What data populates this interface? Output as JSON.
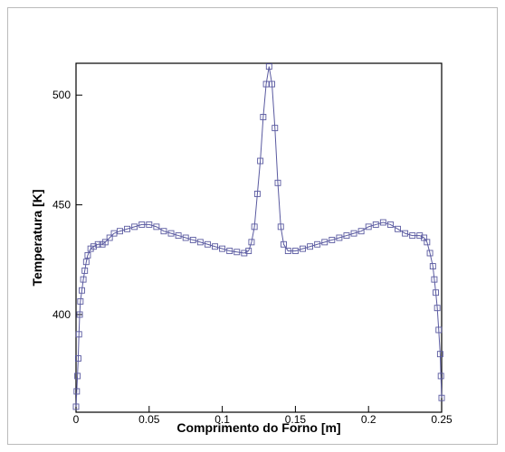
{
  "chart_data": {
    "type": "line",
    "x_label": "Comprimento do Forno [m]",
    "y_label": "Temperatura [K]",
    "x": [
      0,
      0.0005,
      0.001,
      0.0015,
      0.002,
      0.0025,
      0.003,
      0.004,
      0.005,
      0.006,
      0.007,
      0.008,
      0.01,
      0.012,
      0.015,
      0.018,
      0.02,
      0.023,
      0.026,
      0.03,
      0.035,
      0.04,
      0.045,
      0.05,
      0.055,
      0.06,
      0.065,
      0.07,
      0.075,
      0.08,
      0.085,
      0.09,
      0.095,
      0.1,
      0.105,
      0.11,
      0.115,
      0.118,
      0.12,
      0.122,
      0.124,
      0.126,
      0.128,
      0.13,
      0.132,
      0.134,
      0.136,
      0.138,
      0.14,
      0.142,
      0.145,
      0.15,
      0.155,
      0.16,
      0.165,
      0.17,
      0.175,
      0.18,
      0.185,
      0.19,
      0.195,
      0.2,
      0.205,
      0.21,
      0.215,
      0.22,
      0.225,
      0.23,
      0.235,
      0.238,
      0.24,
      0.242,
      0.244,
      0.245,
      0.246,
      0.247,
      0.248,
      0.249,
      0.2495,
      0.25
    ],
    "values": [
      358,
      365,
      372,
      380,
      391,
      400,
      406,
      411,
      416,
      420,
      424,
      427,
      430,
      431,
      432,
      432,
      433,
      435,
      437,
      438,
      439,
      440,
      441,
      441,
      440,
      438,
      437,
      436,
      435,
      434,
      433,
      432,
      431,
      430,
      429,
      428.5,
      428,
      429,
      433,
      440,
      455,
      470,
      490,
      505,
      513,
      505,
      485,
      460,
      440,
      432,
      429,
      429,
      430,
      431,
      432,
      433,
      434,
      435,
      436,
      437,
      438,
      440,
      441,
      442,
      441,
      439,
      437,
      436,
      436,
      435,
      433,
      428,
      422,
      416,
      410,
      403,
      393,
      382,
      372,
      362
    ],
    "color": "#5a5aa0",
    "xlim": [
      0,
      0.25
    ],
    "xticks": [
      0,
      0.05,
      0.1,
      0.15,
      0.2,
      0.25
    ],
    "ylim": [
      355.5,
      514.5
    ],
    "yticks": [
      400,
      450,
      500
    ]
  }
}
